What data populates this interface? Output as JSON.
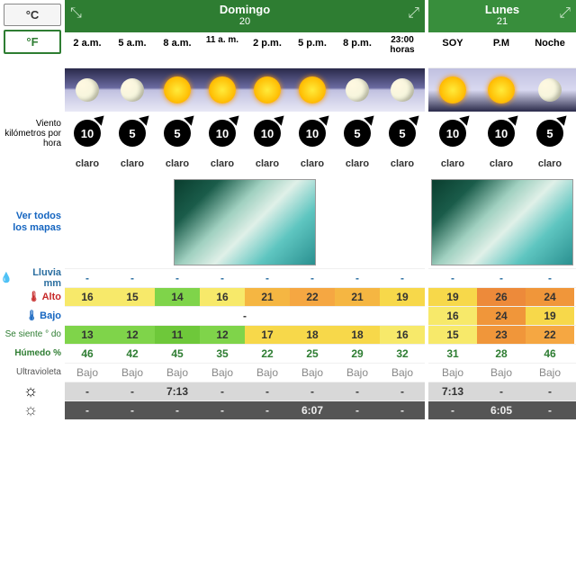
{
  "units": {
    "c": "°C",
    "f": "°F"
  },
  "labels": {
    "wind": "Viento kilómetros por hora",
    "maps": "Ver todos los mapas",
    "rain": "Lluvia mm",
    "high": "Alto",
    "low": "Bajo",
    "feels": "Se siente ° do",
    "humid": "Húmedo %",
    "uv": "Ultravioleta"
  },
  "days": [
    {
      "name": "Domingo",
      "num": "20",
      "hours": [
        "2 a.m.",
        "5 a.m.",
        "8 a.m.",
        "11 a. m.",
        "2 p.m.",
        "5 p.m.",
        "8 p.m.",
        "23:00 horas"
      ],
      "icons": [
        "moon",
        "moon",
        "sun",
        "sun",
        "sun",
        "sun",
        "moon",
        "moon"
      ],
      "wind": [
        10,
        5,
        5,
        10,
        10,
        10,
        5,
        5
      ],
      "desc": [
        "claro",
        "claro",
        "claro",
        "claro",
        "claro",
        "claro",
        "claro",
        "claro"
      ],
      "rain": [
        "-",
        "-",
        "-",
        "-",
        "-",
        "-",
        "-",
        "-"
      ],
      "high": [
        16,
        15,
        14,
        16,
        21,
        22,
        21,
        19
      ],
      "low_full": "-",
      "feels": [
        13,
        12,
        11,
        12,
        17,
        18,
        18,
        16
      ],
      "humid": [
        46,
        42,
        45,
        35,
        22,
        25,
        29,
        32
      ],
      "uv": [
        "Bajo",
        "Bajo",
        "Bajo",
        "Bajo",
        "Bajo",
        "Bajo",
        "Bajo",
        "Bajo"
      ],
      "sunrise": [
        "-",
        "-",
        "7:13",
        "-",
        "-",
        "-",
        "-",
        "-"
      ],
      "sunset": [
        "-",
        "-",
        "-",
        "-",
        "-",
        "6:07",
        "-",
        "-"
      ]
    },
    {
      "name": "Lunes",
      "num": "21",
      "hours": [
        "SOY",
        "P.M",
        "Noche"
      ],
      "icons": [
        "sun",
        "sun",
        "moon"
      ],
      "wind": [
        10,
        10,
        5
      ],
      "desc": [
        "claro",
        "claro",
        "claro"
      ],
      "rain": [
        "-",
        "-",
        "-"
      ],
      "high": [
        19,
        26,
        24
      ],
      "low": [
        16,
        24,
        19
      ],
      "feels": [
        15,
        23,
        22
      ],
      "humid": [
        31,
        28,
        46
      ],
      "uv": [
        "Bajo",
        "Bajo",
        "Bajo"
      ],
      "sunrise": [
        "7:13",
        "-",
        "-"
      ],
      "sunset": [
        "-",
        "6:05",
        "-"
      ]
    }
  ],
  "colors": {
    "high": {
      "domingo": [
        "#f7e96a",
        "#f7e96a",
        "#7fd44a",
        "#f7e96a",
        "#f5b642",
        "#f5a742",
        "#f5b642",
        "#f7d84a"
      ],
      "lunes": [
        "#f7d84a",
        "#ed8a3a",
        "#f0963a"
      ]
    },
    "low_lunes": [
      "#f7e96a",
      "#f0963a",
      "#f7d84a"
    ],
    "feels": {
      "domingo": [
        "#7fd44a",
        "#7fd44a",
        "#6ec83a",
        "#7fd44a",
        "#f7d84a",
        "#f7d84a",
        "#f7d84a",
        "#f7e96a"
      ],
      "lunes": [
        "#f7e96a",
        "#f0963a",
        "#f5a742"
      ]
    },
    "humid": "#2e7d32",
    "uv": "#888",
    "rain": "#2a6ea0",
    "high_label": "#c62828",
    "low_label": "#1565c0",
    "feels_label": "#2e7d32",
    "maps_label": "#1565c0"
  }
}
